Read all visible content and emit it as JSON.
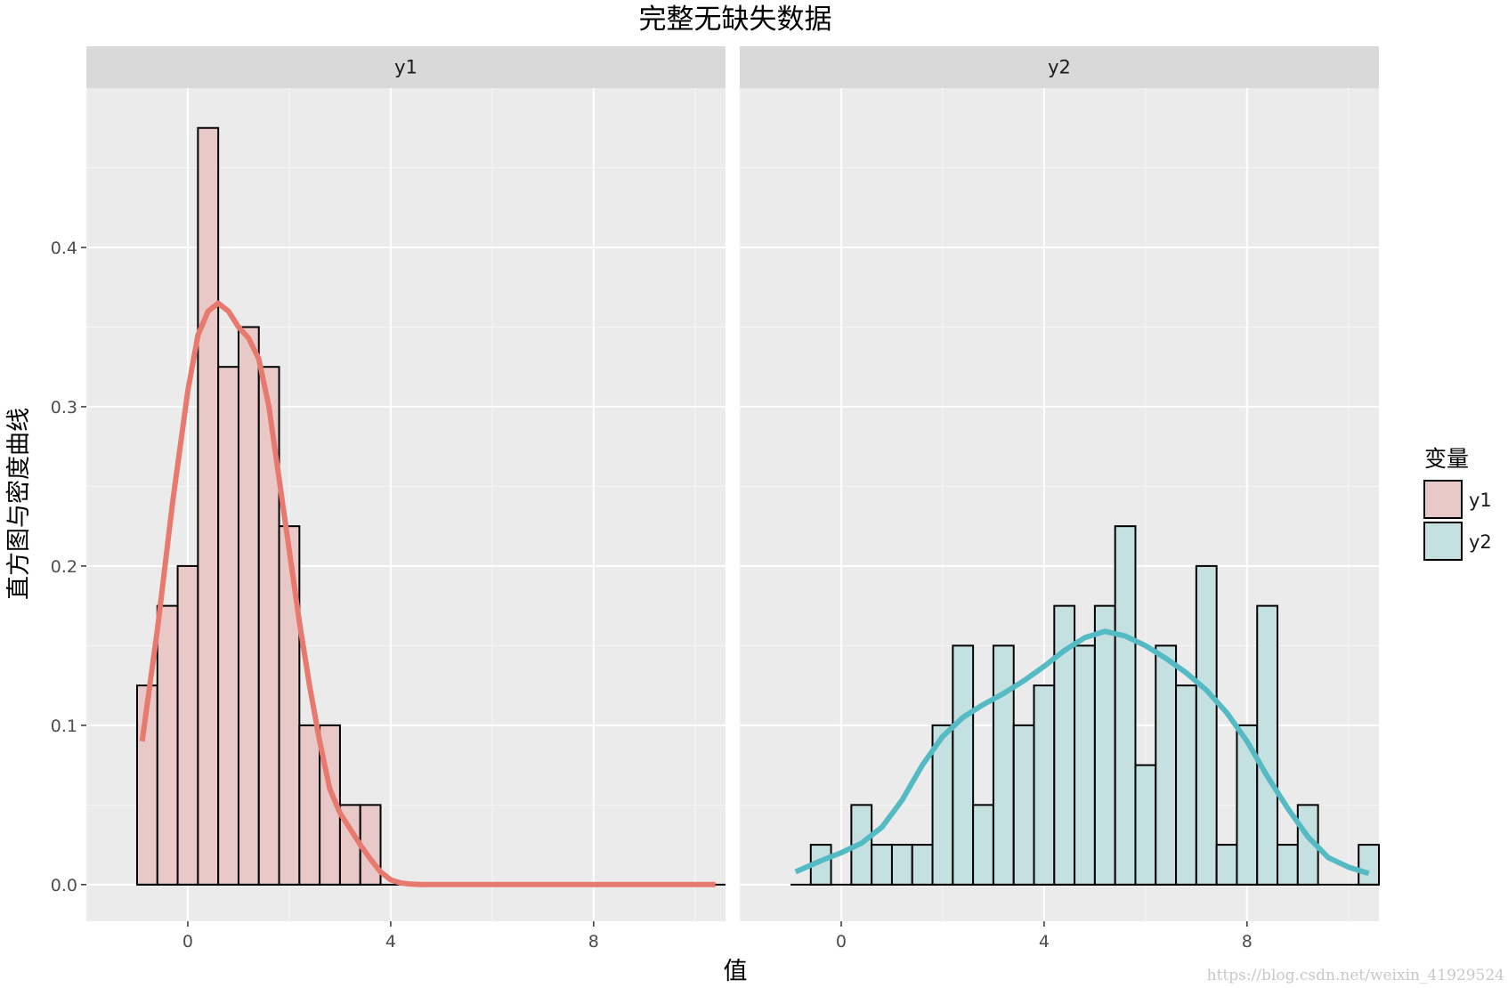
{
  "chart_data": {
    "type": "histogram+density",
    "title": "完整无缺失数据",
    "xlabel": "值",
    "ylabel": "直方图与密度曲线",
    "xlim": [
      -2,
      10.6
    ],
    "ylim": [
      -0.023,
      0.5
    ],
    "x_ticks": [
      0,
      4,
      8
    ],
    "y_ticks": [
      0.0,
      0.1,
      0.2,
      0.3,
      0.4
    ],
    "y_tick_labels": [
      "0.0",
      "0.1",
      "0.2",
      "0.3",
      "0.4"
    ],
    "x_tick_labels": [
      "0",
      "4",
      "8"
    ],
    "grid": true,
    "bin_width": 0.4,
    "legend": {
      "title": "变量",
      "position": "right",
      "items": [
        {
          "label": "y1",
          "fill": "#e8c9c8",
          "line": "#000000"
        },
        {
          "label": "y2",
          "fill": "#c4e0e1",
          "line": "#000000"
        }
      ]
    },
    "panels": [
      {
        "strip": "y1",
        "fill": "#e8c9c8",
        "density_color": "#e8796f",
        "bins": [
          {
            "start": -1.0,
            "density": 0.125
          },
          {
            "start": -0.6,
            "density": 0.175
          },
          {
            "start": -0.2,
            "density": 0.2
          },
          {
            "start": 0.2,
            "density": 0.475
          },
          {
            "start": 0.6,
            "density": 0.325
          },
          {
            "start": 1.0,
            "density": 0.35
          },
          {
            "start": 1.4,
            "density": 0.325
          },
          {
            "start": 1.8,
            "density": 0.225
          },
          {
            "start": 2.2,
            "density": 0.1
          },
          {
            "start": 2.6,
            "density": 0.1
          },
          {
            "start": 3.0,
            "density": 0.05
          },
          {
            "start": 3.4,
            "density": 0.05
          }
        ],
        "baseline": [
          -1.0,
          10.6
        ],
        "density": {
          "x": [
            -0.9,
            -0.6,
            -0.3,
            0.0,
            0.2,
            0.4,
            0.6,
            0.8,
            1.0,
            1.2,
            1.4,
            1.6,
            1.8,
            2.0,
            2.2,
            2.4,
            2.6,
            2.8,
            3.0,
            3.2,
            3.4,
            3.6,
            3.8,
            4.0,
            4.2,
            4.4,
            4.6,
            5.0,
            6.0,
            8.0,
            10.4
          ],
          "y": [
            0.09,
            0.16,
            0.24,
            0.31,
            0.345,
            0.36,
            0.365,
            0.36,
            0.35,
            0.343,
            0.33,
            0.3,
            0.255,
            0.21,
            0.165,
            0.125,
            0.09,
            0.06,
            0.045,
            0.035,
            0.025,
            0.016,
            0.008,
            0.003,
            0.001,
            0.0003,
            0.0,
            0.0,
            0.0,
            0.0,
            0.0
          ]
        }
      },
      {
        "strip": "y2",
        "fill": "#c4e0e1",
        "density_color": "#54bac3",
        "bins": [
          {
            "start": -0.6,
            "density": 0.025
          },
          {
            "start": -0.2,
            "density": 0.0
          },
          {
            "start": 0.2,
            "density": 0.05
          },
          {
            "start": 0.6,
            "density": 0.025
          },
          {
            "start": 1.0,
            "density": 0.025
          },
          {
            "start": 1.4,
            "density": 0.025
          },
          {
            "start": 1.8,
            "density": 0.1
          },
          {
            "start": 2.2,
            "density": 0.15
          },
          {
            "start": 2.6,
            "density": 0.05
          },
          {
            "start": 3.0,
            "density": 0.15
          },
          {
            "start": 3.4,
            "density": 0.1
          },
          {
            "start": 3.8,
            "density": 0.125
          },
          {
            "start": 4.2,
            "density": 0.175
          },
          {
            "start": 4.6,
            "density": 0.15
          },
          {
            "start": 5.0,
            "density": 0.175
          },
          {
            "start": 5.4,
            "density": 0.225
          },
          {
            "start": 5.8,
            "density": 0.075
          },
          {
            "start": 6.2,
            "density": 0.15
          },
          {
            "start": 6.6,
            "density": 0.125
          },
          {
            "start": 7.0,
            "density": 0.2
          },
          {
            "start": 7.4,
            "density": 0.025
          },
          {
            "start": 7.8,
            "density": 0.1
          },
          {
            "start": 8.2,
            "density": 0.175
          },
          {
            "start": 8.6,
            "density": 0.025
          },
          {
            "start": 9.0,
            "density": 0.05
          },
          {
            "start": 9.4,
            "density": 0.0
          },
          {
            "start": 9.8,
            "density": 0.0
          },
          {
            "start": 10.2,
            "density": 0.025
          }
        ],
        "baseline": [
          -1.0,
          10.6
        ],
        "density": {
          "x": [
            -0.9,
            -0.4,
            0.0,
            0.4,
            0.8,
            1.2,
            1.6,
            2.0,
            2.4,
            2.8,
            3.2,
            3.6,
            4.0,
            4.4,
            4.8,
            5.2,
            5.6,
            6.0,
            6.4,
            6.8,
            7.2,
            7.6,
            8.0,
            8.4,
            8.8,
            9.2,
            9.6,
            10.0,
            10.4
          ],
          "y": [
            0.008,
            0.015,
            0.02,
            0.026,
            0.036,
            0.053,
            0.075,
            0.093,
            0.105,
            0.113,
            0.12,
            0.128,
            0.137,
            0.147,
            0.155,
            0.159,
            0.156,
            0.15,
            0.142,
            0.133,
            0.122,
            0.108,
            0.09,
            0.068,
            0.048,
            0.03,
            0.017,
            0.011,
            0.007
          ]
        }
      }
    ]
  },
  "watermark": "https://blog.csdn.net/weixin_41929524"
}
